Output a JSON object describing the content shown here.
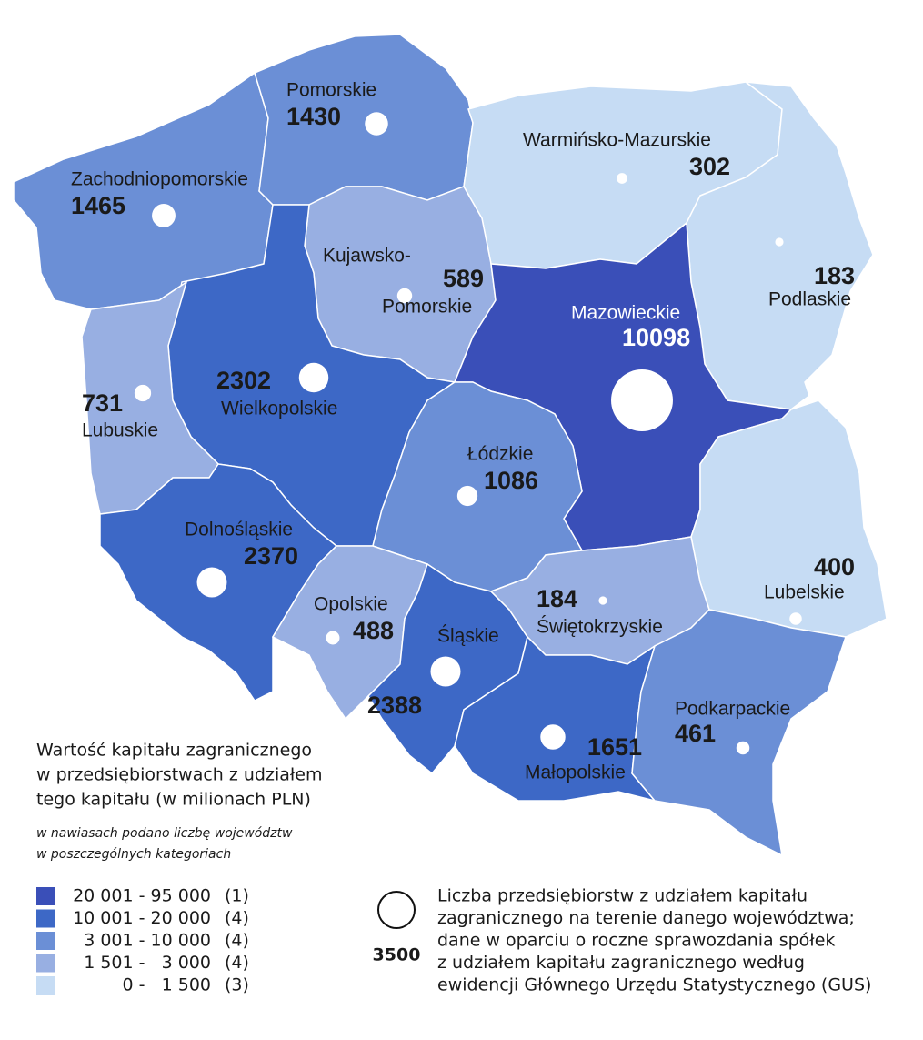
{
  "map": {
    "regions": [
      {
        "name": "Zachodniopomorskie",
        "count": 1465,
        "color": "#6b8fd6"
      },
      {
        "name": "Pomorskie",
        "count": 1430,
        "color": "#6b8fd6"
      },
      {
        "name": "Warmińsko-Mazurskie",
        "count": 302,
        "color": "#c6dcf4"
      },
      {
        "name": "Podlaskie",
        "count": 183,
        "color": "#c6dcf4"
      },
      {
        "name": [
          "Kujawsko-",
          "Pomorskie"
        ],
        "count": 589,
        "color": "#98afe2"
      },
      {
        "name": "Mazowieckie",
        "count": 10098,
        "color": "#3a4fb8"
      },
      {
        "name": "Lubelskie",
        "count": 400,
        "color": "#c6dcf4"
      },
      {
        "name": "Wielkopolskie",
        "count": 2302,
        "color": "#3d68c6"
      },
      {
        "name": "Lubuskie",
        "count": 731,
        "color": "#98afe2"
      },
      {
        "name": "Łódzkie",
        "count": 1086,
        "color": "#6b8fd6"
      },
      {
        "name": "Dolnośląskie",
        "count": 2370,
        "color": "#3d68c6"
      },
      {
        "name": "Opolskie",
        "count": 488,
        "color": "#98afe2"
      },
      {
        "name": "Śląskie",
        "count": 2388,
        "color": "#3d68c6"
      },
      {
        "name": "Świętokrzyskie",
        "count": 184,
        "color": "#98afe2"
      },
      {
        "name": "Małopolskie",
        "count": 1651,
        "color": "#3d68c6"
      },
      {
        "name": "Podkarpackie",
        "count": 461,
        "color": "#6b8fd6"
      }
    ],
    "legend": {
      "title": [
        "Wartość kapitału zagranicznego",
        "w przedsiębiorstwach z udziałem",
        "tego kapitału (w milionach PLN)"
      ],
      "note": [
        "w nawiasach podano liczbę województw",
        "w poszczególnych kategoriach"
      ],
      "classes": [
        {
          "range": "20 001 - 95 000",
          "count": "(1)",
          "color": "#3a4fb8"
        },
        {
          "range": "10 001 - 20 000",
          "count": "(4)",
          "color": "#3d68c6"
        },
        {
          "range": "3 001 - 10 000",
          "count": "(4)",
          "color": "#6b8fd6"
        },
        {
          "range": "1 501 -   3 000",
          "count": "(4)",
          "color": "#98afe2"
        },
        {
          "range": "0 -   1 500",
          "count": "(3)",
          "color": "#c6dcf4"
        }
      ],
      "circle": {
        "value": 3500,
        "text": [
          "Liczba przedsiębiorstw z udziałem kapitału",
          "zagranicznego na terenie danego województwa;",
          "dane w oparciu o roczne sprawozdania spółek",
          "z udziałem kapitału zagranicznego według",
          "ewidencji Głównego Urzędu Statystycznego (GUS)"
        ]
      }
    }
  }
}
